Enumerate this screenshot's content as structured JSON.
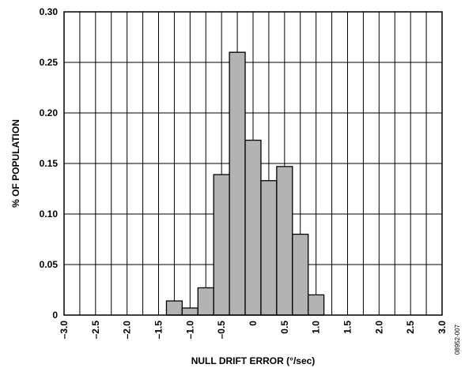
{
  "chart_data": {
    "type": "bar",
    "title": "",
    "xlabel": "NULL DRIFT ERROR (°/sec)",
    "ylabel": "% OF POPULATION",
    "xlim": [
      -3.0,
      3.0
    ],
    "ylim": [
      0,
      0.3
    ],
    "grid": true,
    "x_ticks": [
      "–3.0",
      "–2.5",
      "–2.0",
      "–1.5",
      "–1.0",
      "–0.5",
      "0",
      "0.5",
      "1.0",
      "1.5",
      "2.0",
      "2.5",
      "3.0"
    ],
    "y_ticks": [
      "0",
      "0.05",
      "0.10",
      "0.15",
      "0.20",
      "0.25",
      "0.30"
    ],
    "bin_width": 0.25,
    "bins": [
      {
        "x": -1.25,
        "value": 0.014
      },
      {
        "x": -1.0,
        "value": 0.007
      },
      {
        "x": -0.75,
        "value": 0.027
      },
      {
        "x": -0.5,
        "value": 0.139
      },
      {
        "x": -0.25,
        "value": 0.26
      },
      {
        "x": 0.0,
        "value": 0.173
      },
      {
        "x": 0.25,
        "value": 0.133
      },
      {
        "x": 0.5,
        "value": 0.147
      },
      {
        "x": 0.75,
        "value": 0.08
      },
      {
        "x": 1.0,
        "value": 0.02
      }
    ],
    "bar_color": "#b3b3b3",
    "figure_id": "08952-007"
  }
}
